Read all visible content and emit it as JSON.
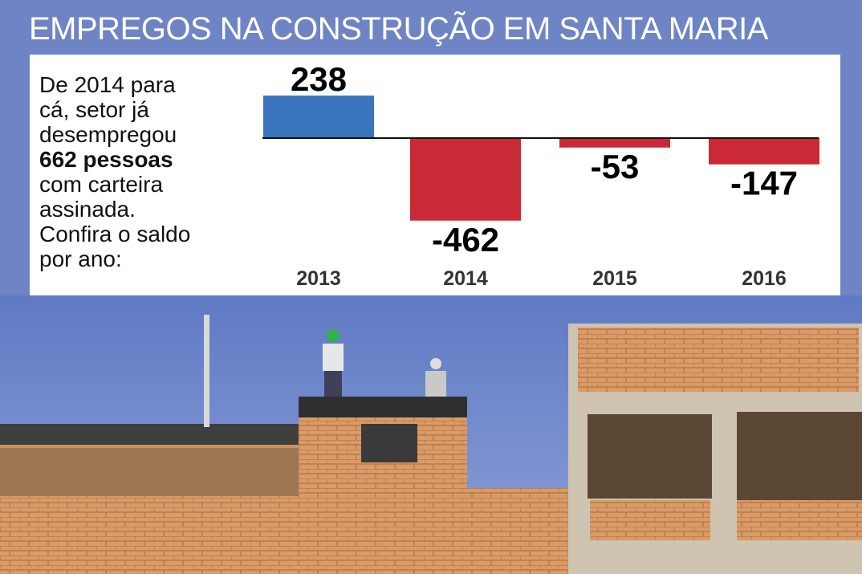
{
  "title": "EMPREGOS NA CONSTRUÇÃO EM SANTA MARIA",
  "intro": {
    "text_before": "De 2014 para cá, setor já desempregou ",
    "text_bold": "662 pessoas",
    "text_after": " com carteira assinada. Confira o saldo por ano:"
  },
  "colors": {
    "positive": "#3a74bd",
    "negative": "#c92a35",
    "background": "#6f84c4"
  },
  "chart_data": {
    "type": "bar",
    "categories": [
      "2013",
      "2014",
      "2015",
      "2016"
    ],
    "values": [
      238,
      -462,
      -53,
      -147
    ],
    "data_labels": [
      "238",
      "-462",
      "-53",
      "-147"
    ],
    "title": "EMPREGOS NA CONSTRUÇÃO EM SANTA MARIA",
    "xlabel": "",
    "ylabel": "",
    "grid": false,
    "legend": "none"
  },
  "photo": {
    "description_icon": "construction-site-photo"
  }
}
